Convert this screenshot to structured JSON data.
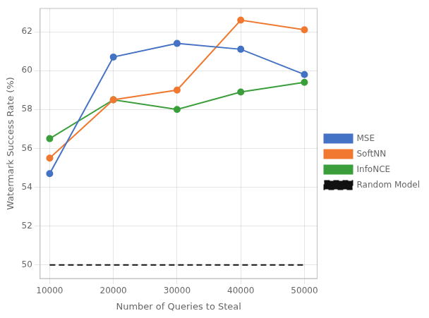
{
  "chart_data": {
    "type": "line",
    "xlabel": "Number of Queries to Steal",
    "ylabel": "Watermark Success Rate (%)",
    "x": [
      10000,
      20000,
      30000,
      40000,
      50000
    ],
    "series": [
      {
        "name": "MSE",
        "color": "#4472c4",
        "marker": "o",
        "line_style": "solid",
        "values": [
          54.7,
          60.7,
          61.4,
          61.1,
          59.8
        ]
      },
      {
        "name": "SoftNN",
        "color": "#f07830",
        "marker": "o",
        "line_style": "solid",
        "values": [
          55.5,
          58.5,
          59.0,
          62.6,
          62.1
        ]
      },
      {
        "name": "InfoNCE",
        "color": "#3a9e3a",
        "marker": "o",
        "line_style": "solid",
        "values": [
          56.5,
          58.5,
          58.0,
          58.9,
          59.4
        ]
      },
      {
        "name": "Random Model",
        "color": "#111111",
        "marker": "none",
        "line_style": "dashed",
        "values": [
          50.0,
          50.0,
          50.0,
          50.0,
          50.0
        ]
      }
    ],
    "xlim": [
      8500,
      52000
    ],
    "ylim": [
      49.3,
      63.2
    ],
    "xticks": [
      10000,
      20000,
      30000,
      40000,
      50000
    ],
    "yticks": [
      50,
      52,
      54,
      56,
      58,
      60,
      62
    ],
    "grid": true,
    "legend": "right"
  }
}
